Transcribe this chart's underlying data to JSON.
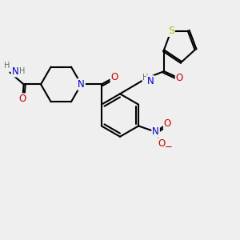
{
  "bg_color": "#efefef",
  "bond_color": "#000000",
  "bond_width": 1.5,
  "dbo": 0.07,
  "atom_colors": {
    "C": "#000000",
    "N": "#0000cc",
    "O": "#cc0000",
    "S": "#b8b800",
    "H": "#607070"
  },
  "font_size": 8.5
}
